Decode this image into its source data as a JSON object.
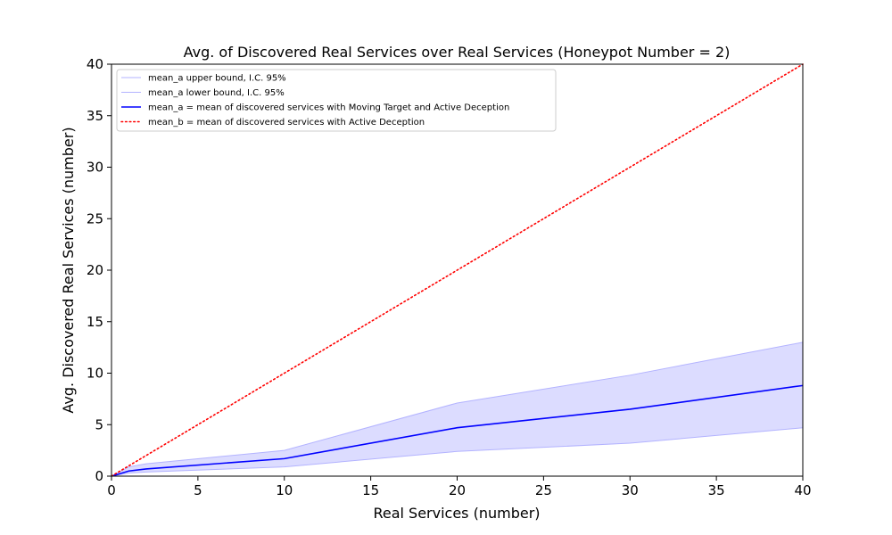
{
  "chart_data": {
    "type": "line",
    "title": "Avg. of Discovered Real Services over Real Services (Honeypot Number = 2)",
    "xlabel": "Real Services (number)",
    "ylabel": "Avg. Discovered Real Services (number)",
    "xlim": [
      0,
      40
    ],
    "ylim": [
      0,
      40
    ],
    "xticks": [
      0,
      5,
      10,
      15,
      20,
      25,
      30,
      35,
      40
    ],
    "yticks": [
      0,
      5,
      10,
      15,
      20,
      25,
      30,
      35,
      40
    ],
    "grid": false,
    "legend_position": "top-left",
    "x": [
      0,
      1,
      2,
      10,
      20,
      30,
      40
    ],
    "series": [
      {
        "name": "mean_a upper bound, I.C. 95%",
        "values": [
          0,
          0.9,
          1.2,
          2.5,
          7.1,
          9.8,
          13.0
        ],
        "color": "#b3b3ff",
        "style": "solid"
      },
      {
        "name": "mean_a lower bound, I.C. 95%",
        "values": [
          0,
          0.3,
          0.4,
          0.9,
          2.4,
          3.2,
          4.7
        ],
        "color": "#b3b3ff",
        "style": "solid"
      },
      {
        "name": "mean_a = mean of discovered services with Moving Target and Active Deception",
        "values": [
          0,
          0.5,
          0.7,
          1.7,
          4.7,
          6.5,
          8.8
        ],
        "color": "#0000ff",
        "style": "solid"
      },
      {
        "name": "mean_b = mean of discovered services with Active Deception",
        "values": [
          0,
          1,
          2,
          10,
          20,
          30,
          40
        ],
        "color": "#ff0000",
        "style": "dotted"
      }
    ],
    "band_fill_color": "#dcdcff"
  }
}
